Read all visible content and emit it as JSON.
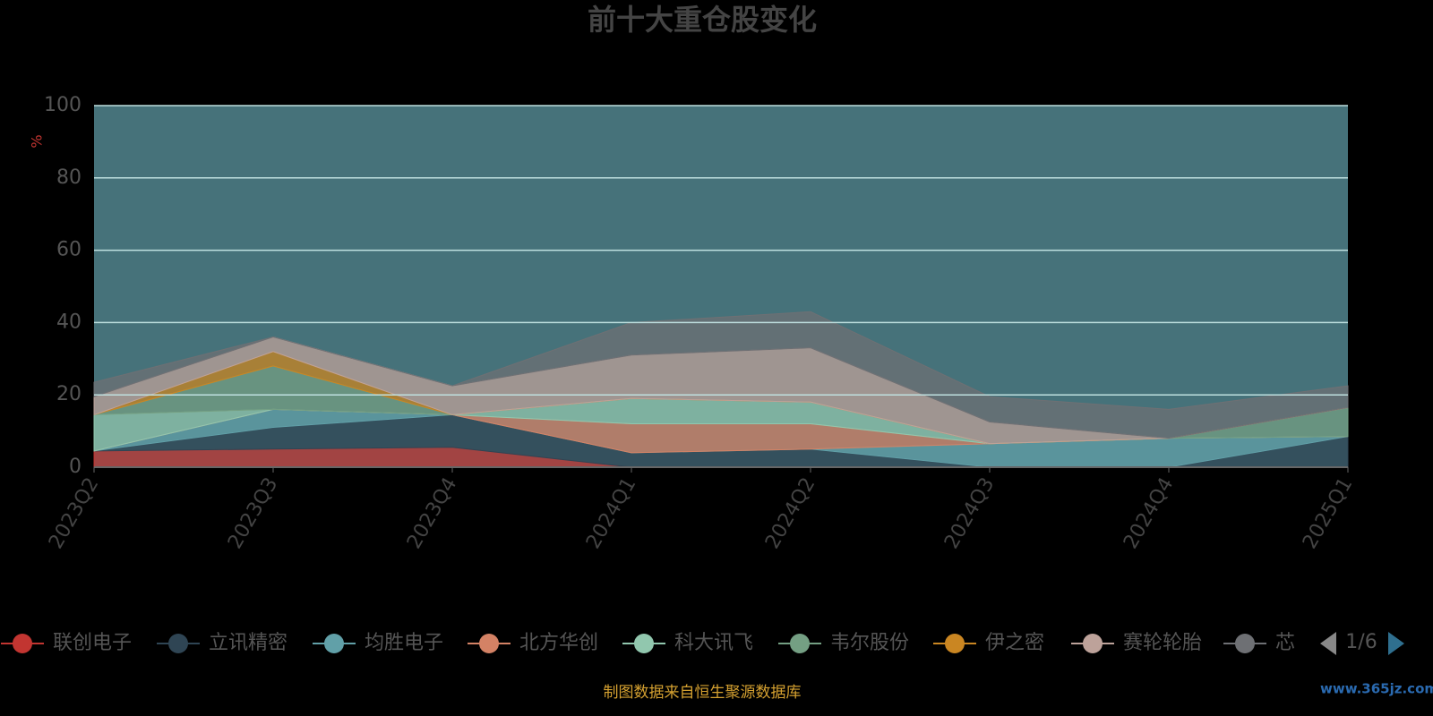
{
  "chart_data": {
    "type": "stacked_area",
    "title": "前十大重仓股变化",
    "y_label": "%",
    "categories": [
      "2023Q2",
      "2023Q3",
      "2023Q4",
      "2024Q1",
      "2024Q2",
      "2024Q3",
      "2024Q4",
      "2025Q1"
    ],
    "ylim": [
      0,
      100
    ],
    "yticks": [
      0,
      20,
      40,
      60,
      80,
      100
    ],
    "grid": true,
    "series": [
      {
        "name": "联创电子",
        "color": "#c23531",
        "values": [
          4.5,
          5,
          5.5,
          0,
          0,
          0,
          0,
          0
        ]
      },
      {
        "name": "立讯精密",
        "color": "#2f4554",
        "values": [
          0,
          6,
          9,
          4,
          5,
          0,
          0,
          8.5
        ]
      },
      {
        "name": "均胜电子",
        "color": "#61a0a8",
        "values": [
          0,
          5,
          0,
          0,
          0,
          6.5,
          8,
          0
        ]
      },
      {
        "name": "北方华创",
        "color": "#d48265",
        "values": [
          0,
          0,
          0,
          8,
          7,
          0,
          0,
          0
        ]
      },
      {
        "name": "科大讯飞",
        "color": "#91c7ae",
        "values": [
          10,
          0,
          0,
          7,
          6,
          0,
          0,
          0
        ]
      },
      {
        "name": "韦尔股份",
        "color": "#749f83",
        "values": [
          0,
          12,
          0,
          0,
          0,
          0,
          0,
          8
        ]
      },
      {
        "name": "伊之密",
        "color": "#ca8622",
        "values": [
          0,
          4,
          0,
          0,
          0,
          0,
          0,
          0
        ]
      },
      {
        "name": "赛轮轮胎",
        "color": "#bda29a",
        "values": [
          5,
          4,
          8,
          12,
          15,
          6,
          0,
          0
        ]
      },
      {
        "name": "芯",
        "color": "#6e7074",
        "values": [
          4,
          0,
          0,
          9,
          10,
          7,
          8,
          6
        ]
      }
    ],
    "legend_page": "1/6",
    "source_note": "制图数据来自恒生聚源数据库",
    "watermark": "www.365jz.com"
  }
}
